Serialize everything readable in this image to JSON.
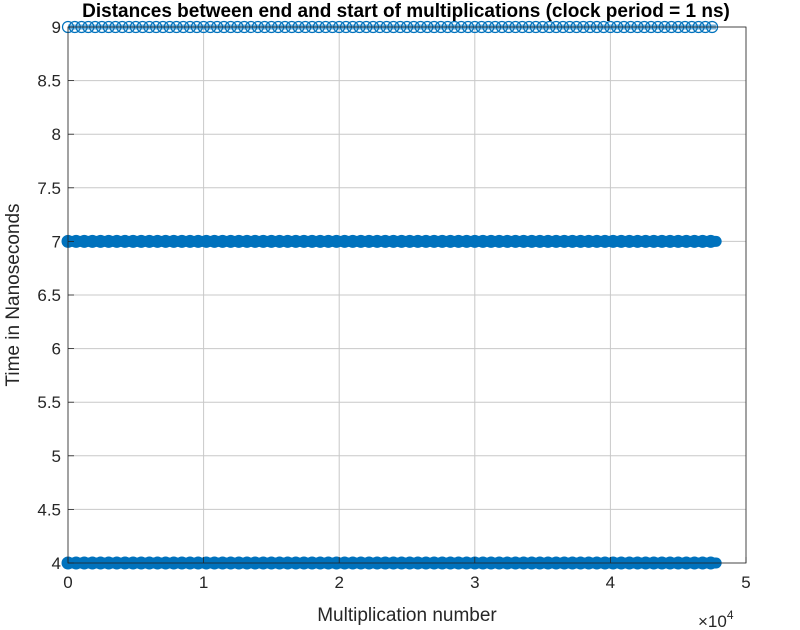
{
  "chart_data": {
    "type": "scatter",
    "title": "Distances between end and start of multiplications (clock period = 1 ns)",
    "xlabel": "Multiplication number",
    "ylabel": "Time in Nanoseconds",
    "x_exponent_base": "×10",
    "x_exponent_power": "4",
    "xlim": [
      0,
      50000
    ],
    "ylim": [
      4,
      9
    ],
    "x_ticks": [
      0,
      10000,
      20000,
      30000,
      40000,
      50000
    ],
    "x_tick_labels": [
      "0",
      "1",
      "2",
      "3",
      "4",
      "5"
    ],
    "y_ticks": [
      4,
      4.5,
      5,
      5.5,
      6,
      6.5,
      7,
      7.5,
      8,
      8.5,
      9
    ],
    "y_tick_labels": [
      "4",
      "4.5",
      "5",
      "5.5",
      "6",
      "6.5",
      "7",
      "7.5",
      "8",
      "8.5",
      "9"
    ],
    "grid": true,
    "marker": "circle",
    "series_color": "#0072BD",
    "series": [
      {
        "y": 4,
        "x_start": 0,
        "x_end": 47800,
        "density": "dense"
      },
      {
        "y": 7,
        "x_start": 0,
        "x_end": 47800,
        "density": "dense"
      },
      {
        "y": 9,
        "x_start": 0,
        "x_end": 47800,
        "density": "sparse"
      }
    ]
  }
}
